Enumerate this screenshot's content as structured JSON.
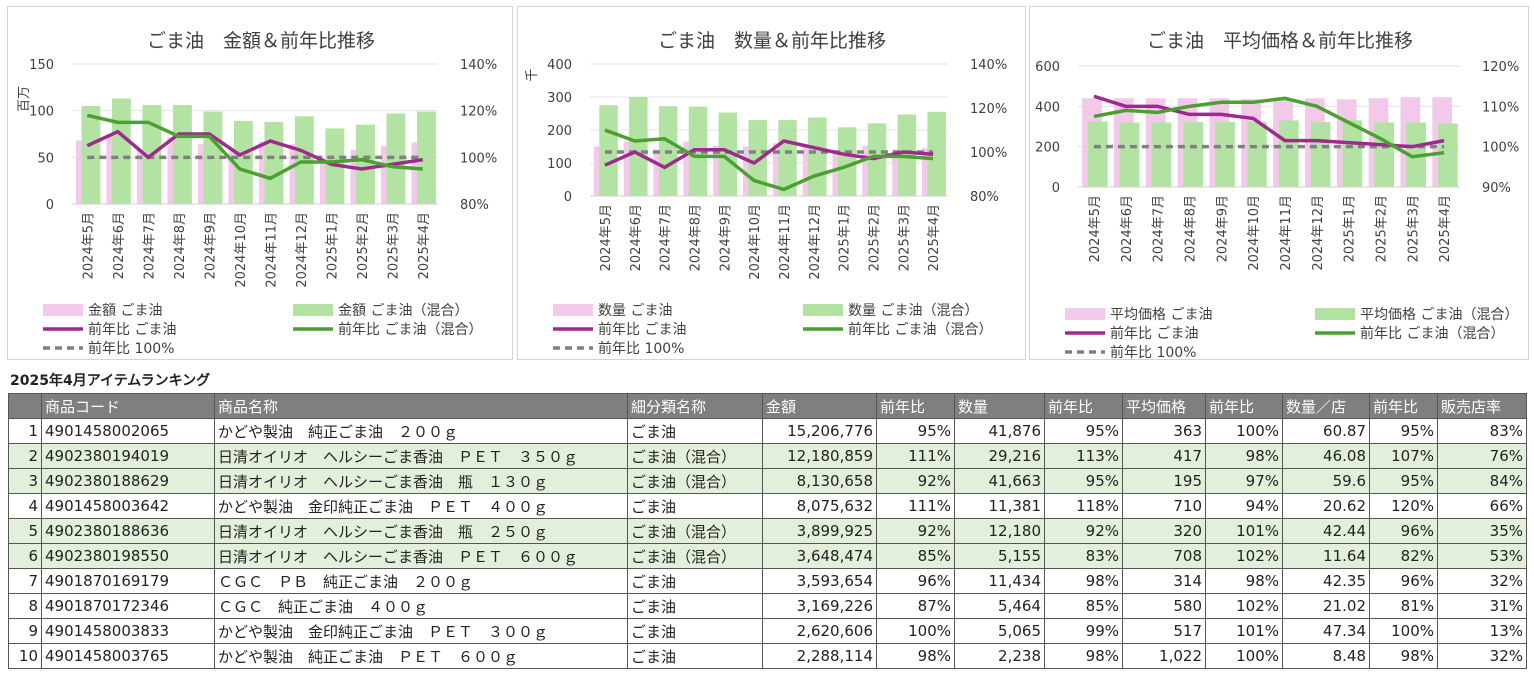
{
  "charts_common": {
    "categories": [
      "2024年5月",
      "2024年6月",
      "2024年7月",
      "2024年8月",
      "2024年9月",
      "2024年10月",
      "2024年11月",
      "2024年12月",
      "2025年1月",
      "2025年2月",
      "2025年3月",
      "2025年4月"
    ],
    "colors": {
      "bar_goma": "#f2c9e9",
      "bar_mix": "#b3e3a3",
      "line_goma": "#9e2a8e",
      "line_mix": "#4aa030",
      "ref": "#808080"
    }
  },
  "chart_data": [
    {
      "type": "bar+line",
      "title": "ごま油　金額＆前年比推移",
      "ylabel": "百万",
      "ylim": [
        0,
        150
      ],
      "yticks": [
        "0",
        "50",
        "100",
        "150"
      ],
      "y2lim": [
        80,
        140
      ],
      "y2ticks": [
        "80%",
        "100%",
        "120%",
        "140%"
      ],
      "categories": [
        "2024年5月",
        "2024年6月",
        "2024年7月",
        "2024年8月",
        "2024年9月",
        "2024年10月",
        "2024年11月",
        "2024年12月",
        "2025年1月",
        "2025年2月",
        "2025年3月",
        "2025年4月"
      ],
      "series": [
        {
          "name": "金額 ごま油",
          "kind": "bar",
          "values": [
            68,
            74,
            57,
            72,
            64,
            57,
            67,
            64,
            49,
            58,
            62,
            66
          ]
        },
        {
          "name": "金額 ごま油（混合）",
          "kind": "bar",
          "values": [
            105,
            113,
            106,
            106,
            99,
            89,
            88,
            94,
            81,
            85,
            97,
            99
          ]
        },
        {
          "name": "前年比 ごま油",
          "kind": "line",
          "values": [
            105,
            111,
            100,
            110,
            110,
            101,
            107,
            103,
            97,
            95,
            97,
            99
          ]
        },
        {
          "name": "前年比 ごま油（混合）",
          "kind": "line",
          "values": [
            118,
            115,
            115,
            109,
            109,
            95,
            91,
            98,
            98,
            99,
            96,
            95
          ]
        },
        {
          "name": "前年比 100%",
          "kind": "ref",
          "values": [
            100,
            100,
            100,
            100,
            100,
            100,
            100,
            100,
            100,
            100,
            100,
            100
          ]
        }
      ],
      "legend": [
        {
          "label": "金額 ごま油",
          "kind": "bar",
          "color": "#f2c9e9"
        },
        {
          "label": "金額 ごま油（混合）",
          "kind": "bar",
          "color": "#b3e3a3"
        },
        {
          "label": "前年比 ごま油",
          "kind": "line",
          "color": "#9e2a8e"
        },
        {
          "label": "前年比 ごま油（混合）",
          "kind": "line",
          "color": "#4aa030"
        },
        {
          "label": "前年比 100%",
          "kind": "ref",
          "color": "#808080"
        }
      ]
    },
    {
      "type": "bar+line",
      "title": "ごま油　数量＆前年比推移",
      "ylabel": "千",
      "ylim": [
        0,
        400
      ],
      "yticks": [
        "0",
        "100",
        "200",
        "300",
        "400"
      ],
      "y2lim": [
        80,
        140
      ],
      "y2ticks": [
        "80%",
        "100%",
        "120%",
        "140%"
      ],
      "categories": [
        "2024年5月",
        "2024年6月",
        "2024年7月",
        "2024年8月",
        "2024年9月",
        "2024年10月",
        "2024年11月",
        "2024年12月",
        "2025年1月",
        "2025年2月",
        "2025年3月",
        "2025年4月"
      ],
      "series": [
        {
          "name": "数量 ごま油",
          "kind": "bar",
          "values": [
            150,
            165,
            140,
            165,
            153,
            150,
            160,
            150,
            132,
            152,
            140,
            145
          ]
        },
        {
          "name": "数量 ごま油（混合）",
          "kind": "bar",
          "values": [
            275,
            300,
            272,
            271,
            253,
            230,
            230,
            238,
            208,
            220,
            247,
            255
          ]
        },
        {
          "name": "前年比 ごま油",
          "kind": "line",
          "values": [
            94,
            100,
            93,
            101,
            101,
            95,
            105,
            102,
            99,
            97,
            100,
            99
          ]
        },
        {
          "name": "前年比 ごま油（混合）",
          "kind": "line",
          "values": [
            110,
            105,
            106,
            98,
            98,
            87,
            83,
            89,
            93,
            98,
            98,
            97
          ]
        },
        {
          "name": "前年比 100%",
          "kind": "ref",
          "values": [
            100,
            100,
            100,
            100,
            100,
            100,
            100,
            100,
            100,
            100,
            100,
            100
          ]
        }
      ],
      "legend": [
        {
          "label": "数量 ごま油",
          "kind": "bar",
          "color": "#f2c9e9"
        },
        {
          "label": "数量 ごま油（混合）",
          "kind": "bar",
          "color": "#b3e3a3"
        },
        {
          "label": "前年比 ごま油",
          "kind": "line",
          "color": "#9e2a8e"
        },
        {
          "label": "前年比 ごま油（混合）",
          "kind": "line",
          "color": "#4aa030"
        },
        {
          "label": "前年比 100%",
          "kind": "ref",
          "color": "#808080"
        }
      ]
    },
    {
      "type": "bar+line",
      "title": "ごま油　平均価格＆前年比推移",
      "ylabel": "",
      "ylim": [
        0,
        600
      ],
      "yticks": [
        "0",
        "200",
        "400",
        "600"
      ],
      "y2lim": [
        90,
        120
      ],
      "y2ticks": [
        "90%",
        "100%",
        "110%",
        "120%"
      ],
      "categories": [
        "2024年5月",
        "2024年6月",
        "2024年7月",
        "2024年8月",
        "2024年9月",
        "2024年10月",
        "2024年11月",
        "2024年12月",
        "2025年1月",
        "2025年2月",
        "2025年3月",
        "2025年4月"
      ],
      "series": [
        {
          "name": "平均価格 ごま油",
          "kind": "bar",
          "values": [
            440,
            440,
            440,
            440,
            440,
            435,
            435,
            440,
            435,
            440,
            445,
            445
          ]
        },
        {
          "name": "平均価格 ごま油（混合）",
          "kind": "bar",
          "values": [
            325,
            320,
            320,
            322,
            322,
            323,
            330,
            322,
            330,
            320,
            320,
            315
          ]
        },
        {
          "name": "前年比 ごま油",
          "kind": "line",
          "values": [
            112.5,
            110,
            110,
            108,
            108,
            107,
            101.5,
            101.5,
            101,
            100.5,
            100,
            101.5
          ]
        },
        {
          "name": "前年比 ごま油（混合）",
          "kind": "line",
          "values": [
            107.5,
            109,
            108.5,
            110,
            111,
            111,
            112,
            110,
            106,
            102,
            97.5,
            98.5
          ]
        },
        {
          "name": "前年比 100%",
          "kind": "ref",
          "values": [
            100,
            100,
            100,
            100,
            100,
            100,
            100,
            100,
            100,
            100,
            100,
            100
          ]
        }
      ],
      "legend": [
        {
          "label": "平均価格 ごま油",
          "kind": "bar",
          "color": "#f2c9e9"
        },
        {
          "label": "平均価格 ごま油（混合）",
          "kind": "bar",
          "color": "#b3e3a3"
        },
        {
          "label": "前年比 ごま油",
          "kind": "line",
          "color": "#9e2a8e"
        },
        {
          "label": "前年比 ごま油（混合）",
          "kind": "line",
          "color": "#4aa030"
        },
        {
          "label": "前年比 100%",
          "kind": "ref",
          "color": "#808080"
        }
      ]
    }
  ],
  "ranking": {
    "title": "2025年4月アイテムランキング",
    "headers": [
      "",
      "商品コード",
      "商品名称",
      "細分類名称",
      "金額",
      "前年比",
      "数量",
      "前年比",
      "平均価格",
      "前年比",
      "数量／店",
      "前年比",
      "販売店率"
    ],
    "rows": [
      {
        "no": "1",
        "code": "4901458002065",
        "name": "かどや製油　純正ごま油　２００ｇ",
        "cat": "ごま油",
        "amount": "15,206,776",
        "amount_yoy": "95%",
        "qty": "41,876",
        "qty_yoy": "95%",
        "avg": "363",
        "avg_yoy": "100%",
        "per_store": "60.87",
        "per_store_yoy": "95%",
        "store_rate": "83%",
        "mix": false
      },
      {
        "no": "2",
        "code": "4902380194019",
        "name": "日清オイリオ　ヘルシーごま香油　ＰＥＴ　３５０ｇ",
        "cat": "ごま油（混合）",
        "amount": "12,180,859",
        "amount_yoy": "111%",
        "qty": "29,216",
        "qty_yoy": "113%",
        "avg": "417",
        "avg_yoy": "98%",
        "per_store": "46.08",
        "per_store_yoy": "107%",
        "store_rate": "76%",
        "mix": true
      },
      {
        "no": "3",
        "code": "4902380188629",
        "name": "日清オイリオ　ヘルシーごま香油　瓶　１３０ｇ",
        "cat": "ごま油（混合）",
        "amount": "8,130,658",
        "amount_yoy": "92%",
        "qty": "41,663",
        "qty_yoy": "95%",
        "avg": "195",
        "avg_yoy": "97%",
        "per_store": "59.6",
        "per_store_yoy": "95%",
        "store_rate": "84%",
        "mix": true
      },
      {
        "no": "4",
        "code": "4901458003642",
        "name": "かどや製油　金印純正ごま油　ＰＥＴ　４００ｇ",
        "cat": "ごま油",
        "amount": "8,075,632",
        "amount_yoy": "111%",
        "qty": "11,381",
        "qty_yoy": "118%",
        "avg": "710",
        "avg_yoy": "94%",
        "per_store": "20.62",
        "per_store_yoy": "120%",
        "store_rate": "66%",
        "mix": false
      },
      {
        "no": "5",
        "code": "4902380188636",
        "name": "日清オイリオ　ヘルシーごま香油　瓶　２５０ｇ",
        "cat": "ごま油（混合）",
        "amount": "3,899,925",
        "amount_yoy": "92%",
        "qty": "12,180",
        "qty_yoy": "92%",
        "avg": "320",
        "avg_yoy": "101%",
        "per_store": "42.44",
        "per_store_yoy": "96%",
        "store_rate": "35%",
        "mix": true
      },
      {
        "no": "6",
        "code": "4902380198550",
        "name": "日清オイリオ　ヘルシーごま香油　ＰＥＴ　６００ｇ",
        "cat": "ごま油（混合）",
        "amount": "3,648,474",
        "amount_yoy": "85%",
        "qty": "5,155",
        "qty_yoy": "83%",
        "avg": "708",
        "avg_yoy": "102%",
        "per_store": "11.64",
        "per_store_yoy": "82%",
        "store_rate": "53%",
        "mix": true
      },
      {
        "no": "7",
        "code": "4901870169179",
        "name": "ＣＧＣ　ＰＢ　純正ごま油　２００ｇ",
        "cat": "ごま油",
        "amount": "3,593,654",
        "amount_yoy": "96%",
        "qty": "11,434",
        "qty_yoy": "98%",
        "avg": "314",
        "avg_yoy": "98%",
        "per_store": "42.35",
        "per_store_yoy": "96%",
        "store_rate": "32%",
        "mix": false
      },
      {
        "no": "8",
        "code": "4901870172346",
        "name": "ＣＧＣ　純正ごま油　４００ｇ",
        "cat": "ごま油",
        "amount": "3,169,226",
        "amount_yoy": "87%",
        "qty": "5,464",
        "qty_yoy": "85%",
        "avg": "580",
        "avg_yoy": "102%",
        "per_store": "21.02",
        "per_store_yoy": "81%",
        "store_rate": "31%",
        "mix": false
      },
      {
        "no": "9",
        "code": "4901458003833",
        "name": "かどや製油　金印純正ごま油　ＰＥＴ　３００ｇ",
        "cat": "ごま油",
        "amount": "2,620,606",
        "amount_yoy": "100%",
        "qty": "5,065",
        "qty_yoy": "99%",
        "avg": "517",
        "avg_yoy": "101%",
        "per_store": "47.34",
        "per_store_yoy": "100%",
        "store_rate": "13%",
        "mix": false
      },
      {
        "no": "10",
        "code": "4901458003765",
        "name": "かどや製油　純正ごま油　ＰＥＴ　６００ｇ",
        "cat": "ごま油",
        "amount": "2,288,114",
        "amount_yoy": "98%",
        "qty": "2,238",
        "qty_yoy": "98%",
        "avg": "1,022",
        "avg_yoy": "100%",
        "per_store": "8.48",
        "per_store_yoy": "98%",
        "store_rate": "32%",
        "mix": false
      }
    ]
  }
}
